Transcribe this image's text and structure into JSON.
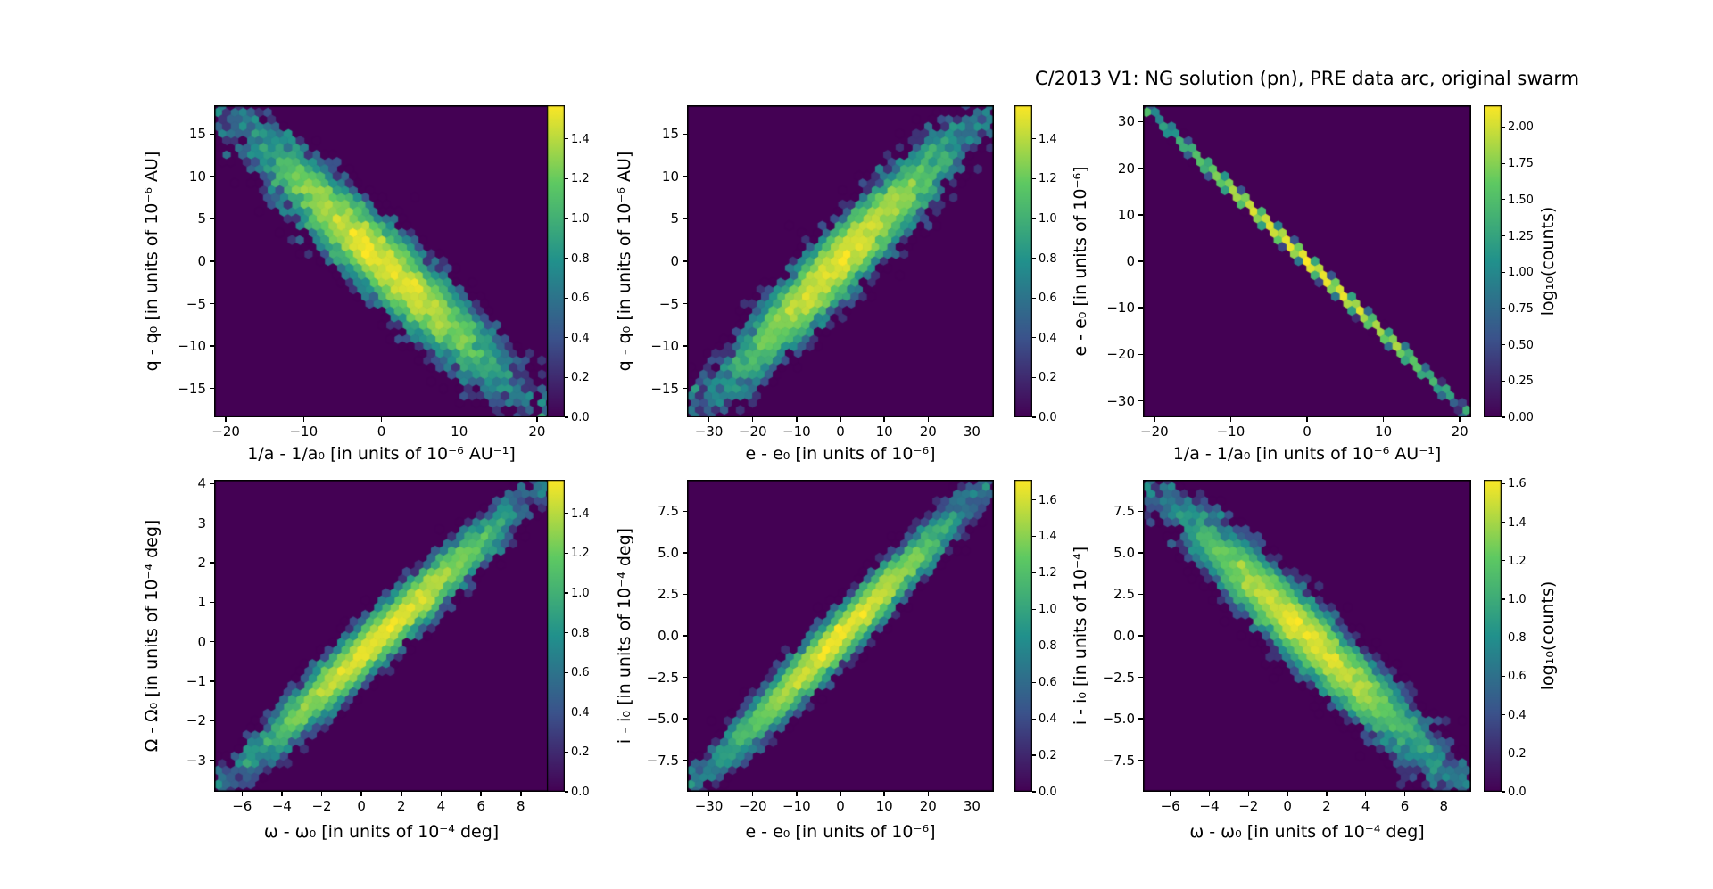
{
  "title": "C/2013 V1: NG solution (pn), PRE data arc, original swarm",
  "colormap": {
    "name": "viridis",
    "bg": "#440154",
    "stops": [
      "#440154",
      "#3b528b",
      "#21918c",
      "#5ec962",
      "#fde725"
    ]
  },
  "chart_data": [
    {
      "type": "hexbin",
      "id": "q-vs-1a",
      "xlabel": "1/a - 1/a₀ [in units of 10⁻⁶ AU⁻¹]",
      "ylabel": "q - q₀ [in units of 10⁻⁶ AU]",
      "xlim": [
        -21.5,
        21.5
      ],
      "ylim": [
        -18.4,
        18.4
      ],
      "xticks": {
        "v": [
          -20,
          -10,
          0,
          10,
          20
        ],
        "t": [
          "−20",
          "−10",
          "0",
          "10",
          "20"
        ]
      },
      "yticks": {
        "v": [
          15,
          10,
          5,
          0,
          -5,
          -10,
          -15
        ],
        "t": [
          "15",
          "10",
          "5",
          "0",
          "−5",
          "−10",
          "−15"
        ]
      },
      "correlation": "negative",
      "colorbar": {
        "label": "",
        "vmax": 1.57,
        "ticks": {
          "v": [
            0,
            0.2,
            0.4,
            0.6,
            0.8,
            1.0,
            1.2,
            1.4
          ],
          "t": [
            "0.0",
            "0.2",
            "0.4",
            "0.6",
            "0.8",
            "1.0",
            "1.2",
            "1.4"
          ]
        }
      },
      "cloud": {
        "sign": -1,
        "along": 0.4,
        "lateral": 0.13,
        "n": 9000,
        "seed": 101
      }
    },
    {
      "type": "hexbin",
      "id": "q-vs-e",
      "xlabel": "e - e₀ [in units of 10⁻⁶]",
      "ylabel": "q - q₀ [in units of 10⁻⁶ AU]",
      "xlim": [
        -35,
        35
      ],
      "ylim": [
        -18.4,
        18.4
      ],
      "xticks": {
        "v": [
          -30,
          -20,
          -10,
          0,
          10,
          20,
          30
        ],
        "t": [
          "−30",
          "−20",
          "−10",
          "0",
          "10",
          "20",
          "30"
        ]
      },
      "yticks": {
        "v": [
          15,
          10,
          5,
          0,
          -5,
          -10,
          -15
        ],
        "t": [
          "15",
          "10",
          "5",
          "0",
          "−5",
          "−10",
          "−15"
        ]
      },
      "correlation": "positive",
      "colorbar": {
        "label": "",
        "vmax": 1.57,
        "ticks": {
          "v": [
            0,
            0.2,
            0.4,
            0.6,
            0.8,
            1.0,
            1.2,
            1.4
          ],
          "t": [
            "0.0",
            "0.2",
            "0.4",
            "0.6",
            "0.8",
            "1.0",
            "1.2",
            "1.4"
          ]
        }
      },
      "cloud": {
        "sign": 1,
        "along": 0.4,
        "lateral": 0.12,
        "n": 9000,
        "seed": 102
      }
    },
    {
      "type": "hexbin",
      "id": "e-vs-1a",
      "xlabel": "1/a - 1/a₀ [in units of 10⁻⁶ AU⁻¹]",
      "ylabel": "e - e₀ [in units of 10⁻⁶]",
      "xlim": [
        -21.5,
        21.5
      ],
      "ylim": [
        -33.5,
        33.5
      ],
      "xticks": {
        "v": [
          -20,
          -10,
          0,
          10,
          20
        ],
        "t": [
          "−20",
          "−10",
          "0",
          "10",
          "20"
        ]
      },
      "yticks": {
        "v": [
          30,
          20,
          10,
          0,
          -10,
          -20,
          -30
        ],
        "t": [
          "30",
          "20",
          "10",
          "0",
          "−10",
          "−20",
          "−30"
        ]
      },
      "correlation": "negative",
      "colorbar": {
        "label": "log₁₀(counts)",
        "vmax": 2.15,
        "ticks": {
          "v": [
            0,
            0.25,
            0.5,
            0.75,
            1.0,
            1.25,
            1.5,
            1.75,
            2.0
          ],
          "t": [
            "0.00",
            "0.25",
            "0.50",
            "0.75",
            "1.00",
            "1.25",
            "1.50",
            "1.75",
            "2.00"
          ]
        }
      },
      "cloud": {
        "sign": -1,
        "along": 0.42,
        "lateral": 0.012,
        "n": 5000,
        "seed": 103
      }
    },
    {
      "type": "hexbin",
      "id": "Omega-vs-omega",
      "xlabel": "ω - ω₀ [in units of 10⁻⁴ deg]",
      "ylabel": "Ω - Ω₀ [in units of 10⁻⁴ deg]",
      "xlim": [
        -7.4,
        9.4
      ],
      "ylim": [
        -3.8,
        4.1
      ],
      "xticks": {
        "v": [
          -6,
          -4,
          -2,
          0,
          2,
          4,
          6,
          8
        ],
        "t": [
          "−6",
          "−4",
          "−2",
          "0",
          "2",
          "4",
          "6",
          "8"
        ]
      },
      "yticks": {
        "v": [
          4,
          3,
          2,
          1,
          0,
          -1,
          -2,
          -3
        ],
        "t": [
          "4",
          "3",
          "2",
          "1",
          "0",
          "−1",
          "−2",
          "−3"
        ]
      },
      "correlation": "positive",
      "colorbar": {
        "label": "",
        "vmax": 1.57,
        "ticks": {
          "v": [
            0,
            0.2,
            0.4,
            0.6,
            0.8,
            1.0,
            1.2,
            1.4
          ],
          "t": [
            "0.0",
            "0.2",
            "0.4",
            "0.6",
            "0.8",
            "1.0",
            "1.2",
            "1.4"
          ]
        }
      },
      "cloud": {
        "sign": 1,
        "along": 0.4,
        "lateral": 0.085,
        "n": 9000,
        "seed": 104
      }
    },
    {
      "type": "hexbin",
      "id": "i-vs-e",
      "xlabel": "e - e₀ [in units of 10⁻⁶]",
      "ylabel": "i - i₀ [in units of 10⁻⁴ deg]",
      "xlim": [
        -35,
        35
      ],
      "ylim": [
        -9.4,
        9.4
      ],
      "xticks": {
        "v": [
          -30,
          -20,
          -10,
          0,
          10,
          20,
          30
        ],
        "t": [
          "−30",
          "−20",
          "−10",
          "0",
          "10",
          "20",
          "30"
        ]
      },
      "yticks": {
        "v": [
          7.5,
          5.0,
          2.5,
          0.0,
          -2.5,
          -5.0,
          -7.5
        ],
        "t": [
          "7.5",
          "5.0",
          "2.5",
          "0.0",
          "−2.5",
          "−5.0",
          "−7.5"
        ]
      },
      "correlation": "positive",
      "colorbar": {
        "label": "",
        "vmax": 1.71,
        "ticks": {
          "v": [
            0,
            0.2,
            0.4,
            0.6,
            0.8,
            1.0,
            1.2,
            1.4,
            1.6
          ],
          "t": [
            "0.0",
            "0.2",
            "0.4",
            "0.6",
            "0.8",
            "1.0",
            "1.2",
            "1.4",
            "1.6"
          ]
        }
      },
      "cloud": {
        "sign": 1,
        "along": 0.4,
        "lateral": 0.08,
        "n": 9000,
        "seed": 105
      }
    },
    {
      "type": "hexbin",
      "id": "i-vs-omega",
      "xlabel": "ω - ω₀ [in units of 10⁻⁴ deg]",
      "ylabel": "i - i₀ [in units of 10⁻⁴]",
      "xlim": [
        -7.4,
        9.4
      ],
      "ylim": [
        -9.4,
        9.4
      ],
      "xticks": {
        "v": [
          -6,
          -4,
          -2,
          0,
          2,
          4,
          6,
          8
        ],
        "t": [
          "−6",
          "−4",
          "−2",
          "0",
          "2",
          "4",
          "6",
          "8"
        ]
      },
      "yticks": {
        "v": [
          7.5,
          5.0,
          2.5,
          0.0,
          -2.5,
          -5.0,
          -7.5
        ],
        "t": [
          "7.5",
          "5.0",
          "2.5",
          "0.0",
          "−2.5",
          "−5.0",
          "−7.5"
        ]
      },
      "correlation": "negative",
      "colorbar": {
        "label": "log₁₀(counts)",
        "vmax": 1.62,
        "ticks": {
          "v": [
            0,
            0.2,
            0.4,
            0.6,
            0.8,
            1.0,
            1.2,
            1.4,
            1.6
          ],
          "t": [
            "0.0",
            "0.2",
            "0.4",
            "0.6",
            "0.8",
            "1.0",
            "1.2",
            "1.4",
            "1.6"
          ]
        }
      },
      "cloud": {
        "sign": -1,
        "along": 0.4,
        "lateral": 0.115,
        "n": 9000,
        "seed": 106
      }
    }
  ]
}
